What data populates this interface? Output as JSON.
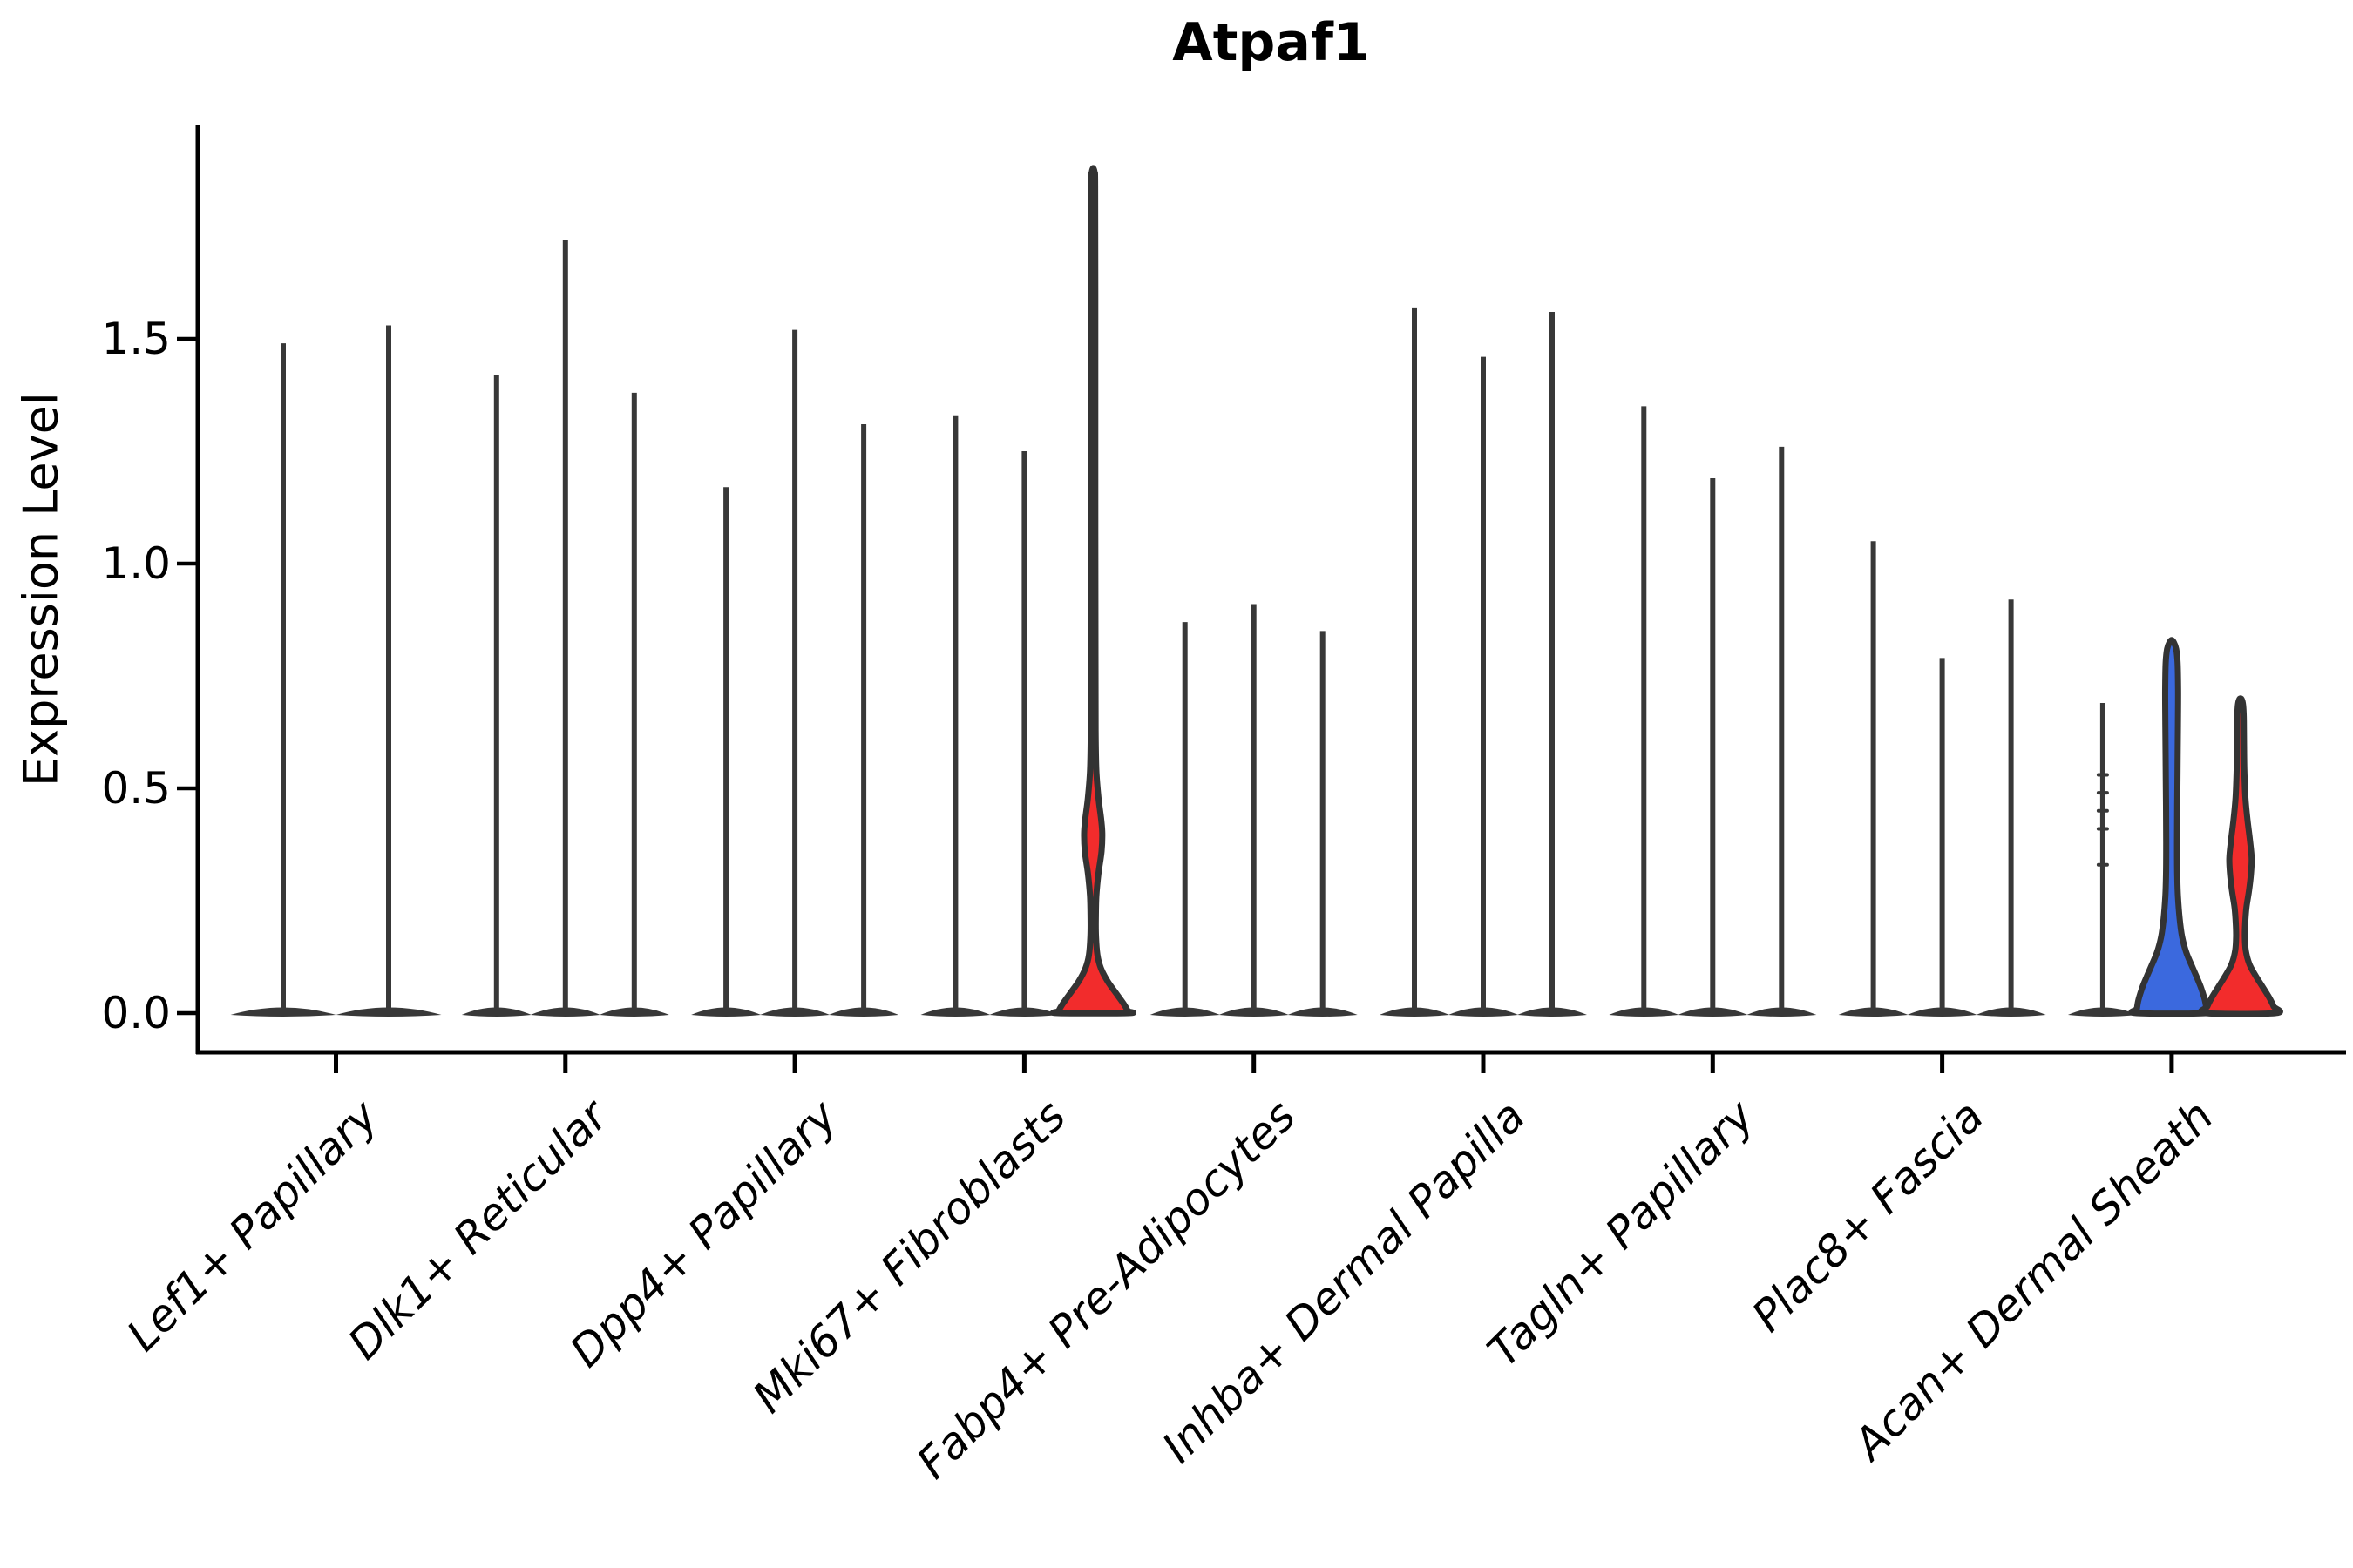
{
  "chart_data": {
    "type": "violin",
    "title": "Atpaf1",
    "ylabel": "Expression Level",
    "xlabel": "",
    "ylim": [
      0,
      1.97
    ],
    "yticks": [
      "0.0",
      "0.5",
      "1.0",
      "1.5"
    ],
    "ytick_values": [
      0.0,
      0.5,
      1.0,
      1.5
    ],
    "grid": "off",
    "legend": "none",
    "categories": [
      "Lef1+ Papillary",
      "Dlk1+ Reticular",
      "Dpp4+ Papillary",
      "Mki67+ Fibroblasts",
      "Fabp4+ Pre-Adipocytes",
      "Inhba+ Dermal Papilla",
      "Tagln+ Papillary",
      "Plac8+ Fascia",
      "Acan+ Dermal Sheath"
    ],
    "colors": {
      "spike": "#383838",
      "outline": "#333333",
      "red": "#F22C2C",
      "blue": "#3B69DE",
      "axis": "#000000"
    },
    "groups": [
      {
        "category": "Lef1+ Papillary",
        "violins": [
          {
            "style": "spike",
            "max": 1.49
          },
          {
            "style": "spike",
            "max": 1.53
          }
        ]
      },
      {
        "category": "Dlk1+ Reticular",
        "violins": [
          {
            "style": "spike",
            "max": 1.42
          },
          {
            "style": "spike",
            "max": 1.72
          },
          {
            "style": "spike",
            "max": 1.38
          }
        ]
      },
      {
        "category": "Dpp4+ Papillary",
        "violins": [
          {
            "style": "spike",
            "max": 1.17
          },
          {
            "style": "spike",
            "max": 1.52
          },
          {
            "style": "spike",
            "max": 1.31
          }
        ]
      },
      {
        "category": "Mki67+ Fibroblasts",
        "violins": [
          {
            "style": "spike",
            "max": 1.33
          },
          {
            "style": "spike",
            "max": 1.25
          },
          {
            "style": "filled",
            "max": 1.88,
            "fill": "#F22C2C",
            "profile": [
              [
                1.88,
                0.0
              ],
              [
                1.87,
                0.04
              ],
              [
                1.84,
                0.055
              ],
              [
                1.6,
                0.06
              ],
              [
                1.2,
                0.06
              ],
              [
                0.8,
                0.065
              ],
              [
                0.62,
                0.07
              ],
              [
                0.54,
                0.09
              ],
              [
                0.48,
                0.15
              ],
              [
                0.43,
                0.23
              ],
              [
                0.4,
                0.26
              ],
              [
                0.36,
                0.24
              ],
              [
                0.31,
                0.15
              ],
              [
                0.26,
                0.09
              ],
              [
                0.21,
                0.075
              ],
              [
                0.17,
                0.08
              ],
              [
                0.13,
                0.12
              ],
              [
                0.1,
                0.22
              ],
              [
                0.07,
                0.42
              ],
              [
                0.045,
                0.65
              ],
              [
                0.02,
                0.88
              ],
              [
                0.005,
                0.99
              ],
              [
                0.0,
                1.0
              ]
            ]
          }
        ]
      },
      {
        "category": "Fabp4+ Pre-Adipocytes",
        "violins": [
          {
            "style": "spike",
            "max": 0.87
          },
          {
            "style": "spike",
            "max": 0.91
          },
          {
            "style": "spike",
            "max": 0.85
          }
        ]
      },
      {
        "category": "Inhba+ Dermal Papilla",
        "violins": [
          {
            "style": "spike",
            "max": 1.57
          },
          {
            "style": "spike",
            "max": 1.46
          },
          {
            "style": "spike",
            "max": 1.56
          }
        ]
      },
      {
        "category": "Tagln+ Papillary",
        "violins": [
          {
            "style": "spike",
            "max": 1.35
          },
          {
            "style": "spike",
            "max": 1.19
          },
          {
            "style": "spike",
            "max": 1.26
          }
        ]
      },
      {
        "category": "Plac8+ Fascia",
        "violins": [
          {
            "style": "spike",
            "max": 1.05
          },
          {
            "style": "spike",
            "max": 0.79
          },
          {
            "style": "spike",
            "max": 0.92
          }
        ]
      },
      {
        "category": "Acan+ Dermal Sheath",
        "violins": [
          {
            "style": "spike",
            "max": 0.69,
            "marks": [
              0.53,
              0.49,
              0.45,
              0.41,
              0.33
            ]
          },
          {
            "style": "filled",
            "max": 0.83,
            "fill": "#3B69DE",
            "profile": [
              [
                0.83,
                0.0
              ],
              [
                0.825,
                0.06
              ],
              [
                0.81,
                0.13
              ],
              [
                0.78,
                0.17
              ],
              [
                0.72,
                0.185
              ],
              [
                0.64,
                0.18
              ],
              [
                0.55,
                0.17
              ],
              [
                0.46,
                0.16
              ],
              [
                0.38,
                0.155
              ],
              [
                0.31,
                0.16
              ],
              [
                0.26,
                0.18
              ],
              [
                0.21,
                0.23
              ],
              [
                0.17,
                0.3
              ],
              [
                0.135,
                0.42
              ],
              [
                0.105,
                0.58
              ],
              [
                0.08,
                0.72
              ],
              [
                0.055,
                0.85
              ],
              [
                0.03,
                0.95
              ],
              [
                0.01,
                0.995
              ],
              [
                0.0,
                1.0
              ]
            ]
          },
          {
            "style": "filled",
            "max": 0.7,
            "fill": "#F22C2C",
            "profile": [
              [
                0.7,
                0.0
              ],
              [
                0.695,
                0.05
              ],
              [
                0.68,
                0.08
              ],
              [
                0.65,
                0.095
              ],
              [
                0.6,
                0.1
              ],
              [
                0.54,
                0.11
              ],
              [
                0.48,
                0.14
              ],
              [
                0.43,
                0.2
              ],
              [
                0.385,
                0.27
              ],
              [
                0.345,
                0.32
              ],
              [
                0.31,
                0.3
              ],
              [
                0.27,
                0.24
              ],
              [
                0.235,
                0.17
              ],
              [
                0.2,
                0.135
              ],
              [
                0.17,
                0.125
              ],
              [
                0.14,
                0.15
              ],
              [
                0.11,
                0.25
              ],
              [
                0.085,
                0.42
              ],
              [
                0.06,
                0.62
              ],
              [
                0.035,
                0.82
              ],
              [
                0.015,
                0.95
              ],
              [
                0.0,
                1.0
              ]
            ]
          }
        ]
      }
    ]
  }
}
